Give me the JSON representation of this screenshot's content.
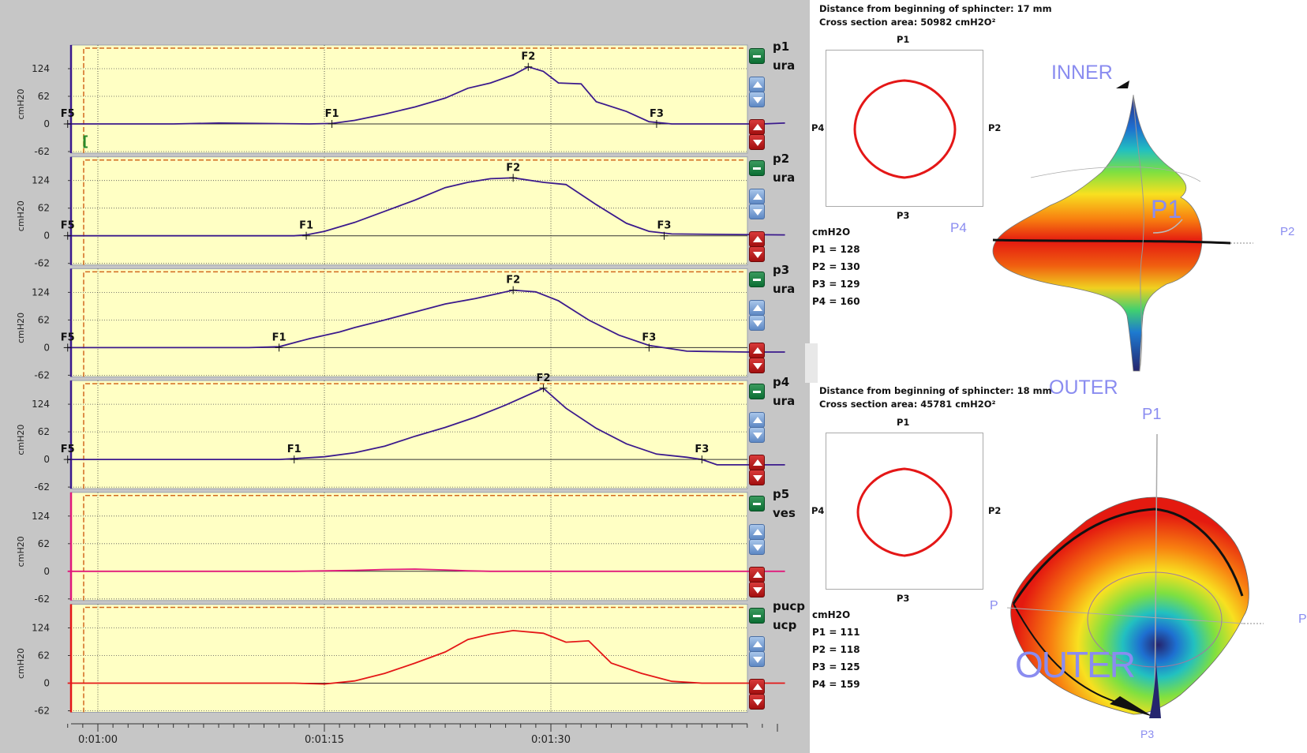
{
  "x_axis": {
    "ticks": [
      "0:01:00",
      "0:01:15",
      "0:01:30"
    ]
  },
  "y_axis": {
    "unit": "cmH20",
    "ticks": [
      "124",
      "62",
      "0",
      "-62"
    ]
  },
  "channels": [
    {
      "name": "p1",
      "sub": "ura",
      "color": "#3b1a8c",
      "markers": [
        {
          "label": "F5",
          "t": -2.0,
          "v": 0
        },
        {
          "label": "F1",
          "t": 15.5,
          "v": 0
        },
        {
          "label": "F2",
          "t": 28.5,
          "v": 128
        },
        {
          "label": "F3",
          "t": 37.0,
          "v": 0
        }
      ],
      "extra": "[",
      "points": [
        [
          -2,
          0
        ],
        [
          5,
          0
        ],
        [
          8,
          2
        ],
        [
          14,
          0
        ],
        [
          15.5,
          1
        ],
        [
          17,
          8
        ],
        [
          19,
          22
        ],
        [
          21,
          38
        ],
        [
          23,
          58
        ],
        [
          24.5,
          80
        ],
        [
          26,
          92
        ],
        [
          27.5,
          110
        ],
        [
          28.5,
          128
        ],
        [
          29.5,
          118
        ],
        [
          30.5,
          92
        ],
        [
          32,
          90
        ],
        [
          33,
          50
        ],
        [
          35,
          28
        ],
        [
          36.5,
          5
        ],
        [
          38,
          0
        ],
        [
          44,
          0
        ],
        [
          45.5,
          2
        ]
      ]
    },
    {
      "name": "p2",
      "sub": "ura",
      "color": "#3b1a8c",
      "markers": [
        {
          "label": "F5",
          "t": -2.0,
          "v": 0
        },
        {
          "label": "F1",
          "t": 13.8,
          "v": 0
        },
        {
          "label": "F2",
          "t": 27.5,
          "v": 130
        },
        {
          "label": "F3",
          "t": 37.5,
          "v": 0
        }
      ],
      "points": [
        [
          -2,
          0
        ],
        [
          10,
          0
        ],
        [
          13,
          0
        ],
        [
          13.8,
          2
        ],
        [
          15,
          10
        ],
        [
          17,
          30
        ],
        [
          19,
          55
        ],
        [
          21,
          80
        ],
        [
          23,
          108
        ],
        [
          24.5,
          120
        ],
        [
          26,
          128
        ],
        [
          27.5,
          130
        ],
        [
          29.5,
          120
        ],
        [
          31,
          115
        ],
        [
          33,
          70
        ],
        [
          35,
          28
        ],
        [
          36.5,
          10
        ],
        [
          38,
          4
        ],
        [
          45.5,
          2
        ]
      ]
    },
    {
      "name": "p3",
      "sub": "ura",
      "color": "#3b1a8c",
      "markers": [
        {
          "label": "F5",
          "t": -2.0,
          "v": 0
        },
        {
          "label": "F1",
          "t": 12.0,
          "v": 0
        },
        {
          "label": "F2",
          "t": 27.5,
          "v": 129
        },
        {
          "label": "F3",
          "t": 36.5,
          "v": 0
        }
      ],
      "points": [
        [
          -2,
          0
        ],
        [
          10,
          0
        ],
        [
          12,
          2
        ],
        [
          14,
          20
        ],
        [
          16,
          35
        ],
        [
          17,
          45
        ],
        [
          19,
          62
        ],
        [
          21,
          80
        ],
        [
          23,
          98
        ],
        [
          25,
          110
        ],
        [
          27.5,
          129
        ],
        [
          29,
          125
        ],
        [
          30.5,
          105
        ],
        [
          32.5,
          62
        ],
        [
          34.5,
          28
        ],
        [
          36.5,
          5
        ],
        [
          39,
          -8
        ],
        [
          43,
          -10
        ],
        [
          45.5,
          -10
        ]
      ]
    },
    {
      "name": "p4",
      "sub": "ura",
      "color": "#3b1a8c",
      "markers": [
        {
          "label": "F5",
          "t": -2.0,
          "v": 0
        },
        {
          "label": "F1",
          "t": 13.0,
          "v": 0
        },
        {
          "label": "F2",
          "t": 29.5,
          "v": 160
        },
        {
          "label": "F3",
          "t": 40.0,
          "v": 0
        }
      ],
      "points": [
        [
          -2,
          0
        ],
        [
          12,
          0
        ],
        [
          13,
          2
        ],
        [
          15,
          6
        ],
        [
          17,
          15
        ],
        [
          19,
          30
        ],
        [
          21,
          52
        ],
        [
          23,
          72
        ],
        [
          25,
          95
        ],
        [
          27,
          122
        ],
        [
          29.5,
          160
        ],
        [
          31,
          115
        ],
        [
          33,
          70
        ],
        [
          35,
          35
        ],
        [
          37,
          12
        ],
        [
          39,
          5
        ],
        [
          40,
          0
        ],
        [
          41,
          -12
        ],
        [
          45.5,
          -12
        ]
      ]
    },
    {
      "name": "p5",
      "sub": "ves",
      "color": "#e0197a",
      "markers": [],
      "points": [
        [
          -2,
          0
        ],
        [
          13,
          0
        ],
        [
          17,
          2
        ],
        [
          19,
          4
        ],
        [
          21,
          5
        ],
        [
          23,
          3
        ],
        [
          24.5,
          1
        ],
        [
          26,
          0
        ],
        [
          45.5,
          0
        ]
      ]
    },
    {
      "name": "pucp",
      "sub": "ucp",
      "color": "#e41717",
      "markers": [],
      "points": [
        [
          -2,
          0
        ],
        [
          13,
          0
        ],
        [
          15,
          -2
        ],
        [
          17,
          5
        ],
        [
          19,
          22
        ],
        [
          21,
          45
        ],
        [
          23,
          70
        ],
        [
          24.5,
          98
        ],
        [
          26,
          110
        ],
        [
          27.5,
          118
        ],
        [
          29.5,
          112
        ],
        [
          31,
          92
        ],
        [
          32.5,
          95
        ],
        [
          34,
          45
        ],
        [
          36,
          22
        ],
        [
          38,
          4
        ],
        [
          40,
          0
        ],
        [
          45.5,
          0
        ]
      ]
    }
  ],
  "cross_sections": [
    {
      "distance_text": "Distance from beginning of sphincter: 17 mm",
      "area_text": "Cross section area: 50982 cmH2O²",
      "unit": "cmH2O",
      "labels": {
        "top": "P1",
        "right": "P2",
        "bottom": "P3",
        "left": "P4"
      },
      "pressures": [
        "P1 = 128",
        "P2 = 130",
        "P3 = 129",
        "P4 = 160"
      ]
    },
    {
      "distance_text": "Distance from beginning of sphincter: 18 mm",
      "area_text": "Cross section area: 45781 cmH2O²",
      "unit": "cmH2O",
      "labels": {
        "top": "P1",
        "right": "P2",
        "bottom": "P3",
        "left": "P4"
      },
      "pressures": [
        "P1 = 111",
        "P2 = 118",
        "P3 = 125",
        "P4 = 159"
      ]
    }
  ],
  "surface_top": {
    "inner": "INNER",
    "outer": "OUTER",
    "p1": "P1",
    "p2": "P2",
    "p4": "P4"
  },
  "surface_bottom": {
    "outer": "OUTER",
    "p1": "P1",
    "p2": "P",
    "p3": "P3",
    "p4": "P"
  }
}
